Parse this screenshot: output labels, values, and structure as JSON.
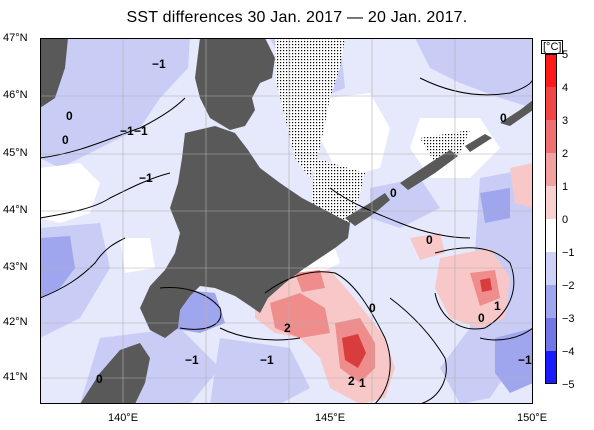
{
  "title": "SST differences 30 Jan. 2017 — 20 Jan. 2017.",
  "latitude_labels": [
    "47°N",
    "46°N",
    "45°N",
    "44°N",
    "43°N",
    "42°N",
    "41°N"
  ],
  "longitude_labels": [
    "140°E",
    "145°E",
    "150°E"
  ],
  "colorbar": {
    "unit": "[°C]",
    "ticks": [
      "5",
      "4",
      "3",
      "2",
      "1",
      "0",
      "−1",
      "−2",
      "−3",
      "−4",
      "−5"
    ],
    "range": [
      -5,
      5
    ],
    "colors": {
      "warm_max": "#ff1a1a",
      "neutral": "#ffffff",
      "cold_max": "#1a1aff"
    }
  },
  "contour_labels": {
    "nw_m1": "−1",
    "w_0_a": "0",
    "w_0_b": "0",
    "w_m1_a": "−1",
    "w_m1_b": "−1",
    "w_m1_c": "−1",
    "ne_0": "0",
    "c_0_a": "0",
    "c_0_b": "0",
    "c_0_c": "0",
    "pos_2": "2",
    "pos_1": "1",
    "e_0": "0",
    "sw_m1_a": "−1",
    "sw_m1_b": "−1",
    "sw_0": "0",
    "s_2": "2",
    "s_1": "1",
    "se_m1": "−1"
  },
  "colors": {
    "land": "#595959",
    "frame": "#000000",
    "grid": "#b0b0b0"
  }
}
